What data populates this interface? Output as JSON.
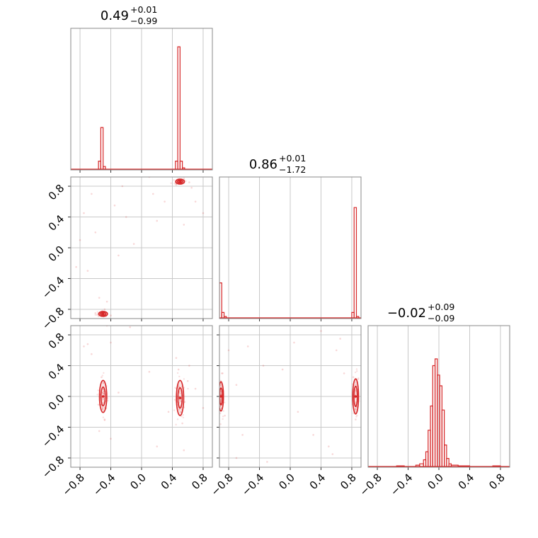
{
  "chart_data": {
    "type": "corner",
    "color": "#d62728",
    "grid": true,
    "ticks": [
      -0.8,
      -0.4,
      0.0,
      0.4,
      0.8
    ],
    "tick_labels": [
      "−0.8",
      "−0.4",
      "0.0",
      "0.4",
      "0.8"
    ],
    "parameters": [
      {
        "title_value": "0.49",
        "title_plus": "+0.01",
        "title_minus": "−0.99",
        "range": [
          -0.92,
          0.92
        ]
      },
      {
        "title_value": "0.86",
        "title_plus": "+0.01",
        "title_minus": "−1.72",
        "range": [
          -0.92,
          0.92
        ]
      },
      {
        "title_value": "−0.02",
        "title_plus": "+0.09",
        "title_minus": "−0.09",
        "range": [
          -0.92,
          0.92
        ]
      }
    ],
    "histograms": [
      {
        "param": 0,
        "bins": [
          {
            "x0": -0.56,
            "x1": -0.53,
            "h": 0.06
          },
          {
            "x0": -0.53,
            "x1": -0.5,
            "h": 0.31
          },
          {
            "x0": -0.5,
            "x1": -0.47,
            "h": 0.02
          },
          {
            "x0": 0.44,
            "x1": 0.47,
            "h": 0.06
          },
          {
            "x0": 0.47,
            "x1": 0.5,
            "h": 0.91
          },
          {
            "x0": 0.5,
            "x1": 0.53,
            "h": 0.06
          },
          {
            "x0": 0.53,
            "x1": 0.56,
            "h": 0.01
          }
        ]
      },
      {
        "param": 1,
        "bins": [
          {
            "x0": -0.92,
            "x1": -0.89,
            "h": 0.26
          },
          {
            "x0": -0.89,
            "x1": -0.86,
            "h": 0.04
          },
          {
            "x0": -0.86,
            "x1": -0.83,
            "h": 0.01
          },
          {
            "x0": 0.8,
            "x1": 0.83,
            "h": 0.04
          },
          {
            "x0": 0.83,
            "x1": 0.86,
            "h": 0.82
          },
          {
            "x0": 0.86,
            "x1": 0.89,
            "h": 0.01
          }
        ]
      },
      {
        "param": 2,
        "bins": [
          {
            "x0": -0.55,
            "x1": -0.45,
            "h": 0.005
          },
          {
            "x0": -0.3,
            "x1": -0.25,
            "h": 0.01
          },
          {
            "x0": -0.25,
            "x1": -0.2,
            "h": 0.02
          },
          {
            "x0": -0.2,
            "x1": -0.17,
            "h": 0.05
          },
          {
            "x0": -0.17,
            "x1": -0.14,
            "h": 0.11
          },
          {
            "x0": -0.14,
            "x1": -0.11,
            "h": 0.27
          },
          {
            "x0": -0.11,
            "x1": -0.08,
            "h": 0.45
          },
          {
            "x0": -0.08,
            "x1": -0.05,
            "h": 0.75
          },
          {
            "x0": -0.05,
            "x1": -0.02,
            "h": 0.8
          },
          {
            "x0": -0.02,
            "x1": 0.01,
            "h": 0.68
          },
          {
            "x0": 0.01,
            "x1": 0.04,
            "h": 0.6
          },
          {
            "x0": 0.04,
            "x1": 0.07,
            "h": 0.42
          },
          {
            "x0": 0.07,
            "x1": 0.1,
            "h": 0.16
          },
          {
            "x0": 0.1,
            "x1": 0.13,
            "h": 0.06
          },
          {
            "x0": 0.13,
            "x1": 0.16,
            "h": 0.02
          },
          {
            "x0": 0.16,
            "x1": 0.25,
            "h": 0.01
          },
          {
            "x0": 0.25,
            "x1": 0.4,
            "h": 0.005
          },
          {
            "x0": 0.7,
            "x1": 0.8,
            "h": 0.005
          }
        ]
      }
    ],
    "pairs": [
      {
        "x_param": 0,
        "y_param": 1,
        "modes": [
          {
            "cx": 0.5,
            "cy": 0.86,
            "sx": 0.03,
            "sy": 0.015
          },
          {
            "cx": -0.5,
            "cy": -0.86,
            "sx": 0.03,
            "sy": 0.015
          }
        ],
        "points": [
          [
            -0.75,
            0.45
          ],
          [
            -0.35,
            0.55
          ],
          [
            0.1,
            0.92
          ],
          [
            0.3,
            0.6
          ],
          [
            -0.6,
            0.2
          ],
          [
            0.55,
            0.3
          ],
          [
            0.7,
            0.6
          ],
          [
            -0.2,
            0.4
          ],
          [
            -0.7,
            -0.3
          ],
          [
            -0.85,
            -0.25
          ],
          [
            -0.55,
            -0.65
          ],
          [
            -0.45,
            -0.7
          ],
          [
            -0.6,
            -0.85
          ],
          [
            -0.4,
            -0.88
          ],
          [
            0.45,
            0.82
          ],
          [
            0.55,
            0.9
          ],
          [
            0.62,
            0.85
          ],
          [
            -0.1,
            0.05
          ],
          [
            0.2,
            0.35
          ],
          [
            -0.3,
            -0.1
          ],
          [
            0.65,
            0.78
          ],
          [
            -0.48,
            -0.8
          ],
          [
            0.4,
            0.95
          ],
          [
            -0.65,
            0.7
          ],
          [
            -0.8,
            0.1
          ],
          [
            0.15,
            0.7
          ],
          [
            -0.25,
            0.8
          ],
          [
            0.8,
            0.45
          ]
        ]
      },
      {
        "x_param": 0,
        "y_param": 2,
        "modes": [
          {
            "cx": -0.5,
            "cy": 0.0,
            "sx": 0.025,
            "sy": 0.11
          },
          {
            "cx": 0.5,
            "cy": -0.02,
            "sx": 0.025,
            "sy": 0.12
          }
        ],
        "points": [
          [
            -0.75,
            0.65
          ],
          [
            -0.7,
            0.68
          ],
          [
            -0.65,
            0.55
          ],
          [
            -0.4,
            0.7
          ],
          [
            -0.45,
            0.92
          ],
          [
            0.6,
            0.2
          ],
          [
            0.62,
            0.4
          ],
          [
            0.45,
            0.5
          ],
          [
            0.55,
            -0.7
          ],
          [
            0.2,
            -0.65
          ],
          [
            0.1,
            0.32
          ],
          [
            -0.4,
            -0.55
          ],
          [
            -0.55,
            -0.45
          ],
          [
            0.48,
            0.35
          ],
          [
            -0.52,
            0.25
          ],
          [
            0.53,
            -0.35
          ],
          [
            -0.48,
            -0.3
          ],
          [
            0.7,
            0.1
          ],
          [
            -0.3,
            0.05
          ],
          [
            -0.15,
            0.9
          ],
          [
            0.35,
            -0.2
          ],
          [
            0.8,
            -0.15
          ]
        ]
      },
      {
        "x_param": 1,
        "y_param": 2,
        "modes": [
          {
            "cx": -0.9,
            "cy": 0.0,
            "sx": 0.015,
            "sy": 0.1
          },
          {
            "cx": 0.85,
            "cy": 0.0,
            "sx": 0.02,
            "sy": 0.12
          }
        ],
        "points": [
          [
            0.25,
            0.95
          ],
          [
            -0.55,
            0.65
          ],
          [
            -0.35,
            0.4
          ],
          [
            0.05,
            0.7
          ],
          [
            -0.7,
            0.15
          ],
          [
            -0.62,
            -0.5
          ],
          [
            -0.7,
            -0.8
          ],
          [
            0.5,
            -0.65
          ],
          [
            0.55,
            -0.75
          ],
          [
            0.6,
            0.6
          ],
          [
            0.7,
            0.3
          ],
          [
            -0.1,
            0.35
          ],
          [
            0.3,
            -0.5
          ],
          [
            0.82,
            0.25
          ],
          [
            0.85,
            -0.3
          ],
          [
            -0.88,
            0.3
          ],
          [
            -0.85,
            -0.25
          ],
          [
            0.4,
            0.85
          ],
          [
            -0.8,
            0.6
          ],
          [
            0.1,
            -0.2
          ],
          [
            0.65,
            0.75
          ],
          [
            -0.3,
            -0.85
          ]
        ]
      }
    ]
  }
}
